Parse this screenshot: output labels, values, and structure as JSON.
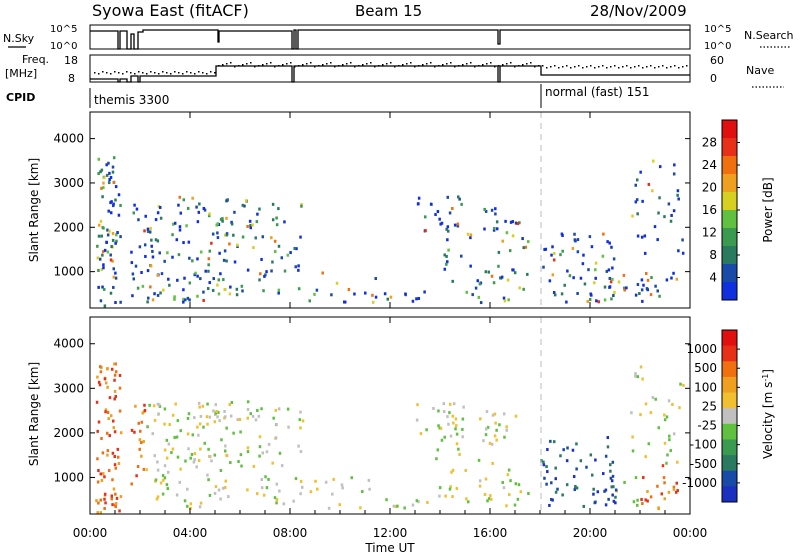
{
  "header": {
    "title": "Syowa East (fitACF)",
    "beam": "Beam 15",
    "date": "28/Nov/2009"
  },
  "upper_panels": {
    "nsky_label": "N.Sky",
    "nsky_ticks": [
      "10^5",
      "10^0"
    ],
    "nsearch_label": "N.Search",
    "nsearch_ticks": [
      "10^5",
      "10^0"
    ],
    "freq_label_1": "Freq.",
    "freq_label_2": "[MHz]",
    "freq_ticks": [
      "18",
      "8"
    ],
    "nave_label": "Nave",
    "nave_ticks": [
      "60",
      "0"
    ],
    "cpid_label": "CPID",
    "cpid_modes": [
      {
        "name": "themis 3300",
        "start_hour": 0
      },
      {
        "name": "normal (fast) 151",
        "start_hour": 18.0
      }
    ]
  },
  "chart_data": [
    {
      "type": "heatmap",
      "title": "Power",
      "ylabel": "Slant Range [km]",
      "xlim_hours": [
        0,
        24
      ],
      "ylim": [
        180,
        4600
      ],
      "ytick_labels": [
        "1000",
        "2000",
        "3000",
        "4000"
      ],
      "colorbar_label": "Power [dB]",
      "colorbar_ticks": [
        "28",
        "24",
        "20",
        "16",
        "12",
        "8",
        "4"
      ],
      "colorbar_colors": [
        "#1030e0",
        "#1a4aa8",
        "#2a7a60",
        "#3a9a50",
        "#60c040",
        "#d8d020",
        "#f0a020",
        "#f07010",
        "#e83018",
        "#e01010"
      ]
    },
    {
      "type": "heatmap",
      "title": "Velocity",
      "ylabel": "Slant Range [km]",
      "xlabel": "Time UT",
      "xlim_hours": [
        0,
        24
      ],
      "ylim": [
        180,
        4600
      ],
      "ytick_labels": [
        "1000",
        "2000",
        "3000",
        "4000"
      ],
      "xtick_labels": [
        "00:00",
        "04:00",
        "08:00",
        "12:00",
        "16:00",
        "20:00",
        "00:00"
      ],
      "colorbar_label": "Velocity [m s^-1]",
      "colorbar_ticks": [
        "1000",
        "500",
        "100",
        "25",
        "-25",
        "-100",
        "-500",
        "-1000"
      ],
      "colorbar_colors": [
        "#1a30c0",
        "#1a4aa8",
        "#2a7a60",
        "#3a9a50",
        "#60c040",
        "#c0c0c0",
        "#f0c030",
        "#f0a020",
        "#f07010",
        "#e83018",
        "#e01010"
      ]
    }
  ]
}
